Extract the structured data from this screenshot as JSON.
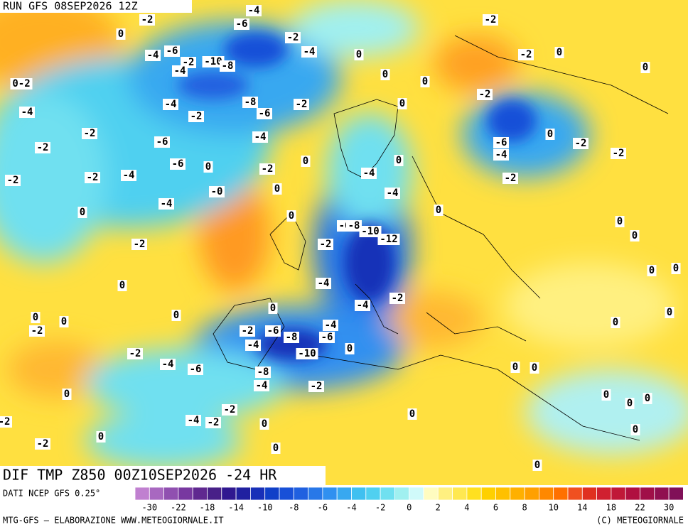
{
  "header": {
    "run": "RUN GFS 08SEP2026 12Z"
  },
  "map": {
    "title": "DIF TMP Z850 00Z10SEP2026 -24 HR",
    "labels": [
      "-2",
      "0",
      "-4",
      "-6",
      "-2",
      "-10",
      "-8",
      "-4",
      "-6",
      "-4",
      "-2",
      "-4",
      "0",
      "0",
      "0",
      "-2",
      "-2",
      "0",
      "0",
      "-2",
      "-8",
      "-6",
      "-2",
      "-4",
      "-2",
      "-4",
      "0-2",
      "-2",
      "-6",
      "-4",
      "-2",
      "-6",
      "0",
      "-2",
      "0",
      "-4",
      "-2",
      "-2",
      "-0",
      "0",
      "-4",
      "0",
      "-2",
      "0",
      "-6",
      "-8",
      "-10",
      "-12",
      "-2",
      "-4",
      "-4",
      "-2",
      "-6",
      "-4",
      "0",
      "-2",
      "-2",
      "-2",
      "0",
      "0",
      "-4",
      "-4",
      "0",
      "0",
      "0",
      "0",
      "0",
      "0",
      "0",
      "0",
      "0",
      "0",
      "0",
      "-2",
      "-2",
      "-6",
      "-8",
      "-6",
      "-4",
      "-4",
      "-10",
      "0",
      "-2",
      "-4",
      "-6",
      "-8",
      "-4",
      "-2",
      "0",
      "-2",
      "-4",
      "-2",
      "0",
      "0",
      "0",
      "-2",
      "0",
      "0",
      "0",
      "0",
      "0",
      "0",
      "0",
      "0",
      "0",
      "-2"
    ]
  },
  "legend": {
    "source": "DATI NCEP GFS 0.25°",
    "colors": [
      "#c080d0",
      "#a868c0",
      "#9050b0",
      "#7838a0",
      "#602890",
      "#482088",
      "#301890",
      "#2020a0",
      "#1830b8",
      "#1040c8",
      "#1850d8",
      "#2060e0",
      "#2878e8",
      "#3090f0",
      "#38a8f0",
      "#40c0f0",
      "#50d0f0",
      "#70e0f0",
      "#a0f0f0",
      "#d0fafa",
      "#fffcc0",
      "#fff080",
      "#ffe850",
      "#ffe020",
      "#ffd000",
      "#ffc000",
      "#ffb000",
      "#ffa000",
      "#ff8800",
      "#ff7000",
      "#f05020",
      "#e03020",
      "#d02030",
      "#c01838",
      "#b01040",
      "#a01048",
      "#901050",
      "#801058"
    ],
    "ticks": [
      -30,
      -22,
      -18,
      -14,
      -10,
      -8,
      -6,
      -4,
      -2,
      0,
      2,
      4,
      6,
      8,
      10,
      14,
      18,
      22,
      30
    ]
  },
  "footer": {
    "left": "MTG-GFS — ELABORAZIONE WWW.METEOGIORNALE.IT",
    "right": "(C) METEOGIORNALE"
  }
}
